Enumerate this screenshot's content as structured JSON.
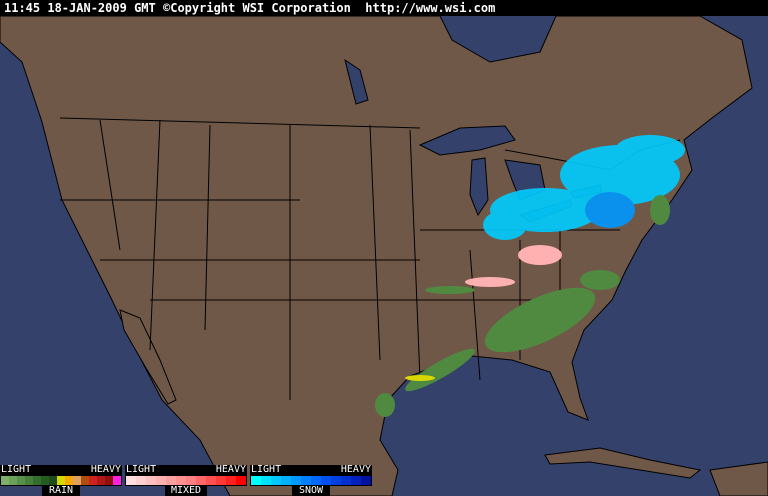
{
  "header": {
    "time": "11:45",
    "date": "18-JAN-2009",
    "zone": "GMT",
    "copyright": "©Copyright WSI Corporation",
    "url": "http://www.wsi.com"
  },
  "colors": {
    "ocean": "#33416b",
    "land": "#6f5848",
    "border": "#000000"
  },
  "legends": [
    {
      "name": "RAIN",
      "light": "LIGHT",
      "heavy": "HEAVY",
      "colors": [
        "#7fb06a",
        "#6aa058",
        "#579048",
        "#457f3a",
        "#346d2d",
        "#255c20",
        "#1d4c18",
        "#d8d800",
        "#f4a800",
        "#e0a060",
        "#b04e10",
        "#d02020",
        "#b01818",
        "#901010",
        "#ff20e0"
      ]
    },
    {
      "name": "MIXED",
      "light": "LIGHT",
      "heavy": "HEAVY",
      "colors": [
        "#ffe0e0",
        "#ffd0d0",
        "#ffc0c0",
        "#ffb0b0",
        "#ffa0a0",
        "#ff9090",
        "#ff8080",
        "#ff6868",
        "#ff5050",
        "#ff3838",
        "#ff2020",
        "#ff0000"
      ]
    },
    {
      "name": "SNOW",
      "light": "LIGHT",
      "heavy": "HEAVY",
      "colors": [
        "#00ffff",
        "#00e0ff",
        "#00c8ff",
        "#00b0ff",
        "#0098ff",
        "#0080ff",
        "#0068ff",
        "#0050f0",
        "#0040e0",
        "#0030d0",
        "#0020c0",
        "#0010a0"
      ]
    }
  ]
}
